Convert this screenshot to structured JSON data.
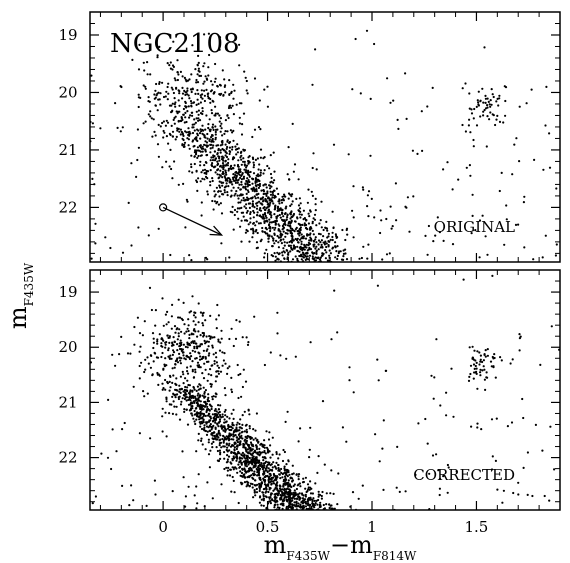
{
  "chart_data": {
    "type": "scatter",
    "object_name": "NGC2108",
    "xlabel": {
      "main": "m",
      "sub1": "F435W",
      "minus": "−m",
      "sub2": "F814W"
    },
    "ylabel": {
      "main": "m",
      "sub": "F435W"
    },
    "xlim": [
      -0.35,
      1.9
    ],
    "ylim": [
      22.95,
      18.6
    ],
    "x_ticks": [
      {
        "value": 0,
        "label": "0"
      },
      {
        "value": 0.5,
        "label": "0.5"
      },
      {
        "value": 1,
        "label": "1"
      },
      {
        "value": 1.5,
        "label": "1.5"
      }
    ],
    "y_ticks": [
      {
        "value": 19,
        "label": "19"
      },
      {
        "value": 20,
        "label": "20"
      },
      {
        "value": 21,
        "label": "21"
      },
      {
        "value": 22,
        "label": "22"
      }
    ],
    "panels": [
      {
        "id": "original",
        "label": "ORIGINAL",
        "reddening_vector": {
          "start": [
            0.0,
            22.0
          ],
          "end": [
            0.28,
            22.48
          ]
        },
        "series": {
          "red_clump": {
            "center": [
              1.55,
              20.25
            ],
            "spread": [
              0.06,
              0.2
            ],
            "count": 60
          },
          "blue_loop": {
            "center": [
              0.15,
              20.2
            ],
            "spread": [
              0.12,
              0.45
            ],
            "count": 360
          },
          "main_sequence": {
            "top": [
              0.15,
              20.6
            ],
            "bottom": [
              0.75,
              23.0
            ],
            "width": 0.09,
            "count": 1200
          },
          "field": {
            "count": 220
          }
        }
      },
      {
        "id": "corrected",
        "label": "CORRECTED",
        "series": {
          "red_clump": {
            "center": [
              1.52,
              20.3
            ],
            "spread": [
              0.05,
              0.18
            ],
            "count": 60
          },
          "blue_loop": {
            "center": [
              0.12,
              20.1
            ],
            "spread": [
              0.11,
              0.4
            ],
            "count": 360
          },
          "main_sequence": {
            "top": [
              0.05,
              20.6
            ],
            "bottom": [
              0.68,
              23.0
            ],
            "width": 0.065,
            "count": 1400
          },
          "field": {
            "count": 200
          }
        }
      }
    ]
  }
}
